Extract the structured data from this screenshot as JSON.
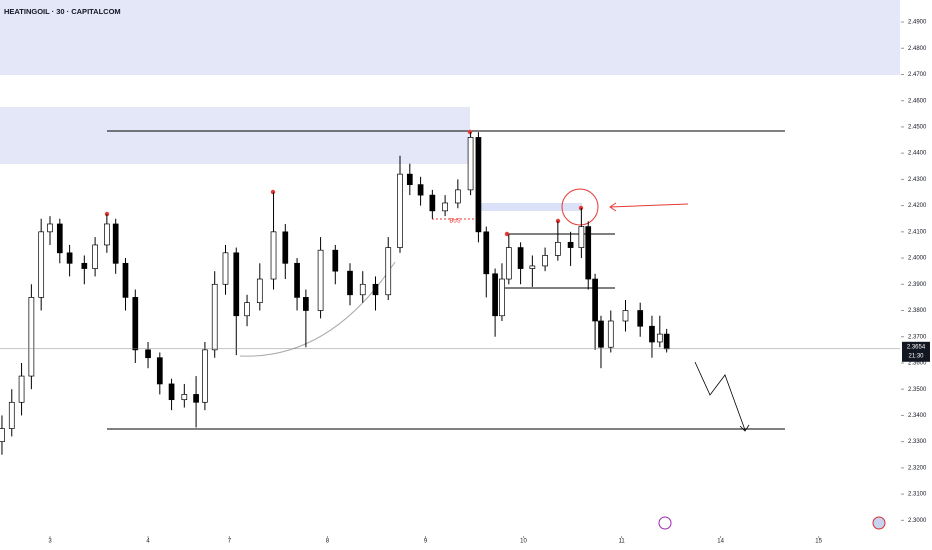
{
  "chart_data": {
    "type": "candlestick",
    "title": "HEATINGOIL · 30 · CAPITALCOM",
    "x": [
      -0.49,
      -0.39,
      -0.29,
      -0.19,
      -0.09,
      0,
      0.1,
      0.2,
      0.35,
      0.46,
      0.58,
      0.67,
      0.77,
      0.87,
      1.0,
      1.12,
      1.24,
      1.37,
      1.49,
      1.58,
      1.68,
      1.79,
      1.9,
      2.01,
      2.14,
      2.28,
      2.4,
      2.52,
      2.61,
      2.76,
      2.91,
      3.06,
      3.19,
      3.32,
      3.45,
      3.57,
      3.67,
      3.78,
      3.9,
      4.03,
      4.16,
      4.29,
      4.37,
      4.45,
      4.54,
      4.61,
      4.68,
      4.8,
      4.92,
      5.05,
      5.18,
      5.31,
      5.42,
      5.49,
      5.56,
      5.62,
      5.72,
      5.87,
      6.02,
      6.14,
      6.22,
      6.29
    ],
    "open": [
      2.33,
      2.335,
      2.345,
      2.355,
      2.385,
      2.41,
      2.413,
      2.402,
      2.398,
      2.396,
      2.405,
      2.413,
      2.398,
      2.385,
      2.365,
      2.362,
      2.352,
      2.346,
      2.348,
      2.345,
      2.365,
      2.39,
      2.402,
      2.378,
      2.383,
      2.392,
      2.41,
      2.398,
      2.385,
      2.38,
      2.403,
      2.395,
      2.386,
      2.39,
      2.386,
      2.404,
      2.432,
      2.428,
      2.424,
      2.418,
      2.421,
      2.426,
      2.446,
      2.41,
      2.394,
      2.378,
      2.392,
      2.404,
      2.396,
      2.397,
      2.401,
      2.406,
      2.404,
      2.412,
      2.392,
      2.376,
      2.366,
      2.376,
      2.38,
      2.374,
      2.368,
      2.371
    ],
    "high": [
      2.34,
      2.35,
      2.36,
      2.39,
      2.415,
      2.416,
      2.415,
      2.405,
      2.401,
      2.408,
      2.4167,
      2.415,
      2.4,
      2.388,
      2.368,
      2.364,
      2.354,
      2.352,
      2.355,
      2.368,
      2.395,
      2.405,
      2.404,
      2.386,
      2.398,
      2.425,
      2.413,
      2.4,
      2.388,
      2.408,
      2.405,
      2.398,
      2.395,
      2.393,
      2.408,
      2.439,
      2.436,
      2.431,
      2.426,
      2.424,
      2.43,
      2.448,
      2.448,
      2.412,
      2.396,
      2.398,
      2.409,
      2.406,
      2.401,
      2.404,
      2.414,
      2.41,
      2.419,
      2.414,
      2.394,
      2.378,
      2.38,
      2.384,
      2.383,
      2.378,
      2.378,
      2.373
    ],
    "low": [
      2.325,
      2.332,
      2.34,
      2.35,
      2.38,
      2.405,
      2.398,
      2.393,
      2.39,
      2.393,
      2.402,
      2.394,
      2.38,
      2.36,
      2.358,
      2.348,
      2.342,
      2.343,
      2.3354,
      2.342,
      2.362,
      2.386,
      2.363,
      2.374,
      2.38,
      2.388,
      2.392,
      2.38,
      2.366,
      2.377,
      2.39,
      2.382,
      2.383,
      2.38,
      2.384,
      2.402,
      2.424,
      2.42,
      2.415,
      2.416,
      2.419,
      2.424,
      2.406,
      2.385,
      2.37,
      2.376,
      2.39,
      2.39,
      2.389,
      2.395,
      2.399,
      2.397,
      2.4,
      2.388,
      2.365,
      2.358,
      2.364,
      2.372,
      2.37,
      2.362,
      2.366,
      2.364
    ],
    "close": [
      2.335,
      2.345,
      2.355,
      2.385,
      2.41,
      2.413,
      2.402,
      2.398,
      2.396,
      2.405,
      2.413,
      2.398,
      2.385,
      2.365,
      2.362,
      2.352,
      2.346,
      2.348,
      2.345,
      2.365,
      2.39,
      2.402,
      2.378,
      2.383,
      2.392,
      2.41,
      2.398,
      2.385,
      2.38,
      2.403,
      2.395,
      2.386,
      2.39,
      2.386,
      2.404,
      2.432,
      2.428,
      2.424,
      2.418,
      2.421,
      2.426,
      2.446,
      2.41,
      2.394,
      2.378,
      2.392,
      2.404,
      2.396,
      2.397,
      2.401,
      2.406,
      2.404,
      2.412,
      2.392,
      2.376,
      2.366,
      2.376,
      2.38,
      2.374,
      2.368,
      2.371,
      2.3654
    ],
    "up_color": "#ffffff",
    "down_color": "#000000",
    "xlim": [
      -0.51,
      8.67
    ],
    "xticks": [
      {
        "value": 0,
        "label": "3"
      },
      {
        "value": 1,
        "label": "4"
      },
      {
        "value": 1.83,
        "label": "7"
      },
      {
        "value": 2.83,
        "label": "8"
      },
      {
        "value": 3.83,
        "label": "9"
      },
      {
        "value": 4.83,
        "label": "10"
      },
      {
        "value": 5.83,
        "label": "11"
      },
      {
        "value": 6.84,
        "label": "14"
      },
      {
        "value": 7.84,
        "label": "15"
      }
    ],
    "ylim": [
      2.2944,
      2.4984
    ],
    "yticks": [
      {
        "value": 2.49,
        "label": "2.4900"
      },
      {
        "value": 2.48,
        "label": "2.4800"
      },
      {
        "value": 2.47,
        "label": "2.4700"
      },
      {
        "value": 2.46,
        "label": "2.4600"
      },
      {
        "value": 2.45,
        "label": "2.4500"
      },
      {
        "value": 2.44,
        "label": "2.4400"
      },
      {
        "value": 2.43,
        "label": "2.4300"
      },
      {
        "value": 2.42,
        "label": "2.4200"
      },
      {
        "value": 2.41,
        "label": "2.4100"
      },
      {
        "value": 2.4,
        "label": "2.4000"
      },
      {
        "value": 2.39,
        "label": "2.3900"
      },
      {
        "value": 2.38,
        "label": "2.3800"
      },
      {
        "value": 2.37,
        "label": "2.3700"
      },
      {
        "value": 2.36,
        "label": "2.3600"
      },
      {
        "value": 2.35,
        "label": "2.3500"
      },
      {
        "value": 2.34,
        "label": "2.3400"
      },
      {
        "value": 2.33,
        "label": "2.3300"
      },
      {
        "value": 2.32,
        "label": "2.3200"
      },
      {
        "value": 2.31,
        "label": "2.3100"
      },
      {
        "value": 2.3,
        "label": "2.3000"
      }
    ],
    "last_price": 2.3654,
    "countdown": "21:30",
    "annotation": "BoS"
  }
}
